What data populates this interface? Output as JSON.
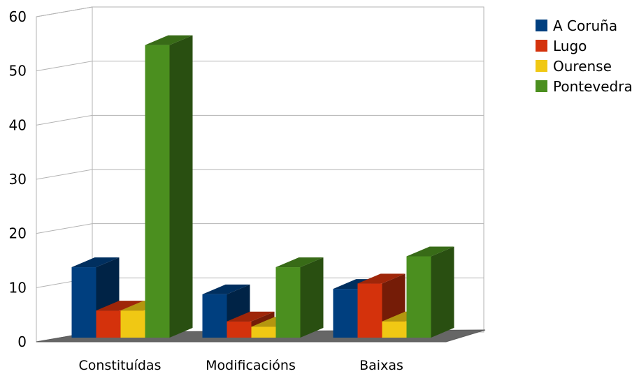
{
  "chart_data": {
    "type": "bar",
    "title": "",
    "xlabel": "",
    "ylabel": "",
    "ylim": [
      0,
      60
    ],
    "yticks": [
      0,
      10,
      20,
      30,
      40,
      50,
      60
    ],
    "grid": true,
    "legend": "right",
    "three_d": true,
    "categories": [
      "Constituídas",
      "Modificacións",
      "Baixas"
    ],
    "series": [
      {
        "name": "A Coruña",
        "color": "#003f7f",
        "values": [
          13,
          8,
          9
        ]
      },
      {
        "name": "Lugo",
        "color": "#d4320c",
        "values": [
          5,
          3,
          10
        ]
      },
      {
        "name": "Ourense",
        "color": "#f0c814",
        "values": [
          5,
          2,
          3
        ]
      },
      {
        "name": "Pontevedra",
        "color": "#4b8f1f",
        "values": [
          54,
          13,
          15
        ]
      }
    ]
  }
}
